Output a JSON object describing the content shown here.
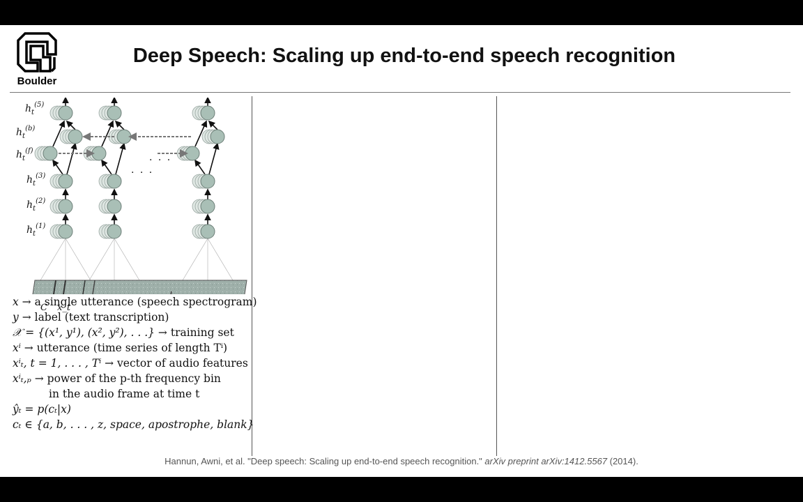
{
  "logo": {
    "text": "Boulder",
    "icon": "cu-boulder-logo"
  },
  "title": "Deep Speech: Scaling up end-to-end speech recognition",
  "diagram": {
    "layer_labels": [
      "h_t^(5)",
      "h_t^(b)",
      "h_t^(f)",
      "h_t^(3)",
      "h_t^(2)",
      "h_t^(1)"
    ],
    "ellipsis": "· · ·",
    "spectrogram_labels": {
      "context": "C",
      "frame": "x_t"
    },
    "colors": {
      "node_fill": "#a9bfb6",
      "node_stroke": "#6d7f78",
      "spectrogram": "#9fb0aa"
    }
  },
  "definitions": [
    {
      "lhs": "x",
      "text": "a single utterance (speech spectrogram)"
    },
    {
      "lhs": "y",
      "text": "label (text transcription)"
    },
    {
      "lhs": "𝒳 = {(x¹, y¹), (x², y²), . . .}",
      "text": "training set"
    },
    {
      "lhs": "xⁱ",
      "text": "utterance (time series of length Tⁱ)"
    },
    {
      "lhs": "xⁱₜ, t = 1, . . . , Tⁱ",
      "text": "vector of audio features"
    },
    {
      "lhs": "xⁱₜ,ₚ",
      "text": "power of the p-th frequency bin",
      "text2": "in the audio frame at time t"
    },
    {
      "lhs": "ŷₜ = p(cₜ|x)"
    },
    {
      "lhs": "cₜ ∈ {a, b, . . . , z, space, apostrophe, blank}"
    }
  ],
  "citation": {
    "plain": "Hannun, Awni, et al. \"Deep speech: Scaling up end-to-end speech recognition.\" ",
    "italic": "arXiv preprint arXiv:1412.5567",
    "year": " (2014)."
  }
}
